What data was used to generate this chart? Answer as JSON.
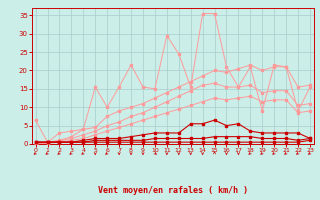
{
  "x": [
    0,
    1,
    2,
    3,
    4,
    5,
    6,
    7,
    8,
    9,
    10,
    11,
    12,
    13,
    14,
    15,
    16,
    17,
    18,
    19,
    20,
    21,
    22,
    23
  ],
  "bg_color": "#cceee8",
  "grid_color": "#a8cccc",
  "line_color_dark": "#cc0000",
  "line_color_light": "#ff9999",
  "xlabel": "Vent moyen/en rafales ( km/h )",
  "ylim": [
    0,
    37
  ],
  "xlim": [
    -0.3,
    23.3
  ],
  "yticks": [
    0,
    5,
    10,
    15,
    20,
    25,
    30,
    35
  ],
  "xticks": [
    0,
    1,
    2,
    3,
    4,
    5,
    6,
    7,
    8,
    9,
    10,
    11,
    12,
    13,
    14,
    15,
    16,
    17,
    18,
    19,
    20,
    21,
    22,
    23
  ],
  "series_light": [
    [
      6.5,
      0.5,
      3.0,
      3.5,
      4.0,
      15.5,
      10.0,
      15.5,
      21.5,
      15.5,
      15.0,
      29.5,
      24.5,
      15.5,
      35.5,
      35.5,
      21.0,
      15.5,
      21.0,
      9.0,
      21.5,
      21.0,
      9.0,
      15.5
    ],
    [
      0,
      0.5,
      1.0,
      2.0,
      4.0,
      4.5,
      7.5,
      9.0,
      10.0,
      11.0,
      12.5,
      14.0,
      15.5,
      17.0,
      18.5,
      20.0,
      19.5,
      20.5,
      21.5,
      20.0,
      21.0,
      21.0,
      15.5,
      16.0
    ],
    [
      0,
      0.3,
      0.8,
      1.5,
      2.5,
      3.5,
      5.0,
      6.0,
      7.5,
      8.5,
      10.0,
      11.5,
      13.0,
      14.5,
      16.0,
      16.5,
      15.5,
      15.5,
      16.0,
      14.0,
      14.5,
      14.5,
      10.5,
      11.0
    ],
    [
      0,
      0.2,
      0.5,
      1.0,
      1.5,
      2.5,
      3.5,
      4.5,
      5.5,
      6.5,
      7.5,
      8.5,
      9.5,
      10.5,
      11.5,
      12.5,
      12.0,
      12.5,
      13.0,
      11.5,
      12.0,
      12.0,
      8.5,
      9.0
    ]
  ],
  "series_dark": [
    [
      0.5,
      0.5,
      0.5,
      0.5,
      1.0,
      1.5,
      1.5,
      1.5,
      2.0,
      2.5,
      3.0,
      3.0,
      3.0,
      5.5,
      5.5,
      6.5,
      5.0,
      5.5,
      3.5,
      3.0,
      3.0,
      3.0,
      3.0,
      1.5
    ],
    [
      0.5,
      0.5,
      0.5,
      0.5,
      0.5,
      1.0,
      1.0,
      1.0,
      1.0,
      1.0,
      1.5,
      1.5,
      1.5,
      1.5,
      1.5,
      2.0,
      2.0,
      2.0,
      2.0,
      1.5,
      1.5,
      1.5,
      1.0,
      1.5
    ],
    [
      0.5,
      0.5,
      0.5,
      0.5,
      0.5,
      0.5,
      0.5,
      0.5,
      0.5,
      0.5,
      0.5,
      0.5,
      0.5,
      0.5,
      0.5,
      0.5,
      0.5,
      0.5,
      0.5,
      0.5,
      0.5,
      0.5,
      0.5,
      1.0
    ]
  ],
  "arrow_angles_deg": [
    225,
    225,
    225,
    225,
    225,
    270,
    225,
    270,
    270,
    270,
    315,
    270,
    270,
    270,
    270,
    90,
    270,
    270,
    225,
    225,
    225,
    225,
    225,
    225
  ]
}
